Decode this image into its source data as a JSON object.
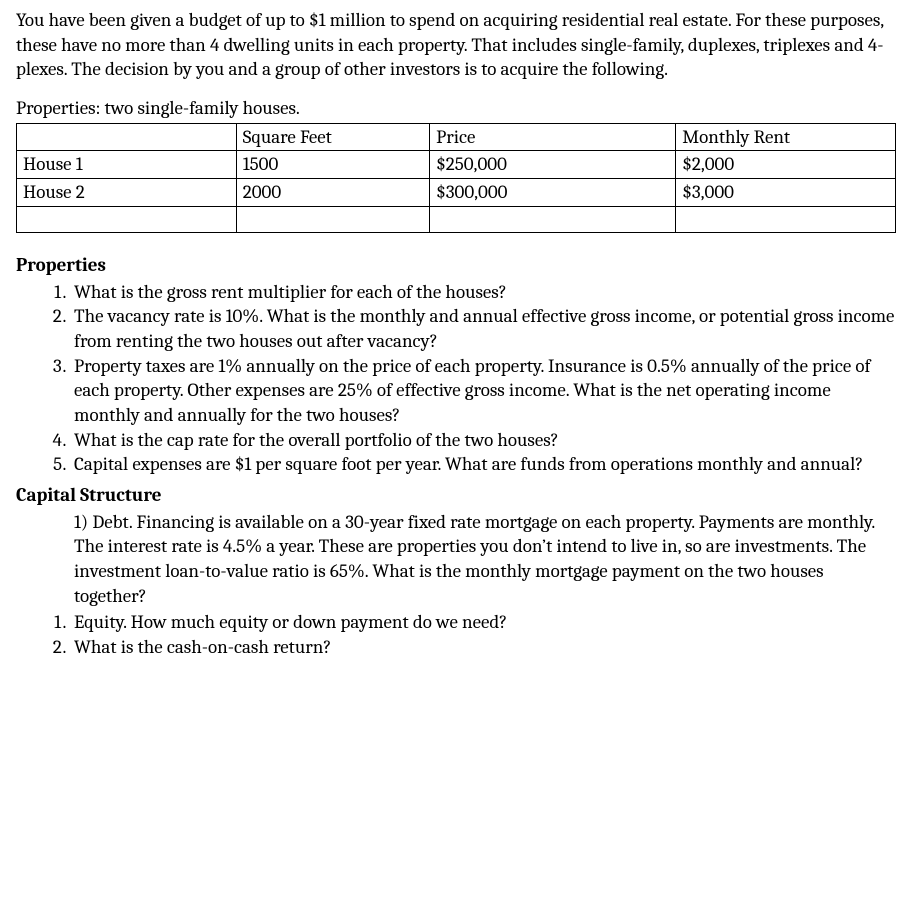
{
  "intro": "You have been given a budget of up to $1 million to spend on acquiring residential real estate.  For these purposes, these have no more than 4 dwelling units in each property.  That includes single-family, duplexes, triplexes and 4-plexes.  The decision by you and a group of other investors is to acquire the following.",
  "subhead": "Properties: two single-family houses.",
  "table": {
    "headers": [
      "",
      "Square Feet",
      "Price",
      "Monthly Rent"
    ],
    "rows": [
      [
        "House 1",
        "1500",
        "$250,000",
        "$2,000"
      ],
      [
        "House 2",
        "2000",
        "$300,000",
        "$3,000"
      ],
      [
        "",
        "",
        "",
        ""
      ]
    ]
  },
  "section1_title": "Properties",
  "properties_qs": [
    "What is the gross rent multiplier for each of the houses?",
    "The vacancy rate is 10%.  What is the monthly and annual effective gross income, or potential gross income from renting the two houses out after vacancy?",
    "Property taxes are 1% annually on the price of each property.  Insurance is 0.5% annually of the price of each property.  Other expenses are 25% of effective gross income.  What is the net operating income monthly and annually for the two houses?",
    "What is the cap rate for the overall portfolio of the two houses?",
    "Capital expenses are $1 per square foot per year.  What are funds from operations monthly and annual?"
  ],
  "section2_title": "Capital Structure",
  "cap_debt": "1) Debt. Financing is available on a 30-year fixed rate mortgage on each property.  Payments are monthly.  The interest rate is 4.5% a year.  These are properties you don’t intend to live in, so are investments.  The investment loan-to-value ratio is 65%.  What is the monthly mortgage payment on the two houses together?",
  "cap_qs": [
    "Equity.  How much equity or down payment do we need?",
    " What is the cash-on-cash return?"
  ]
}
